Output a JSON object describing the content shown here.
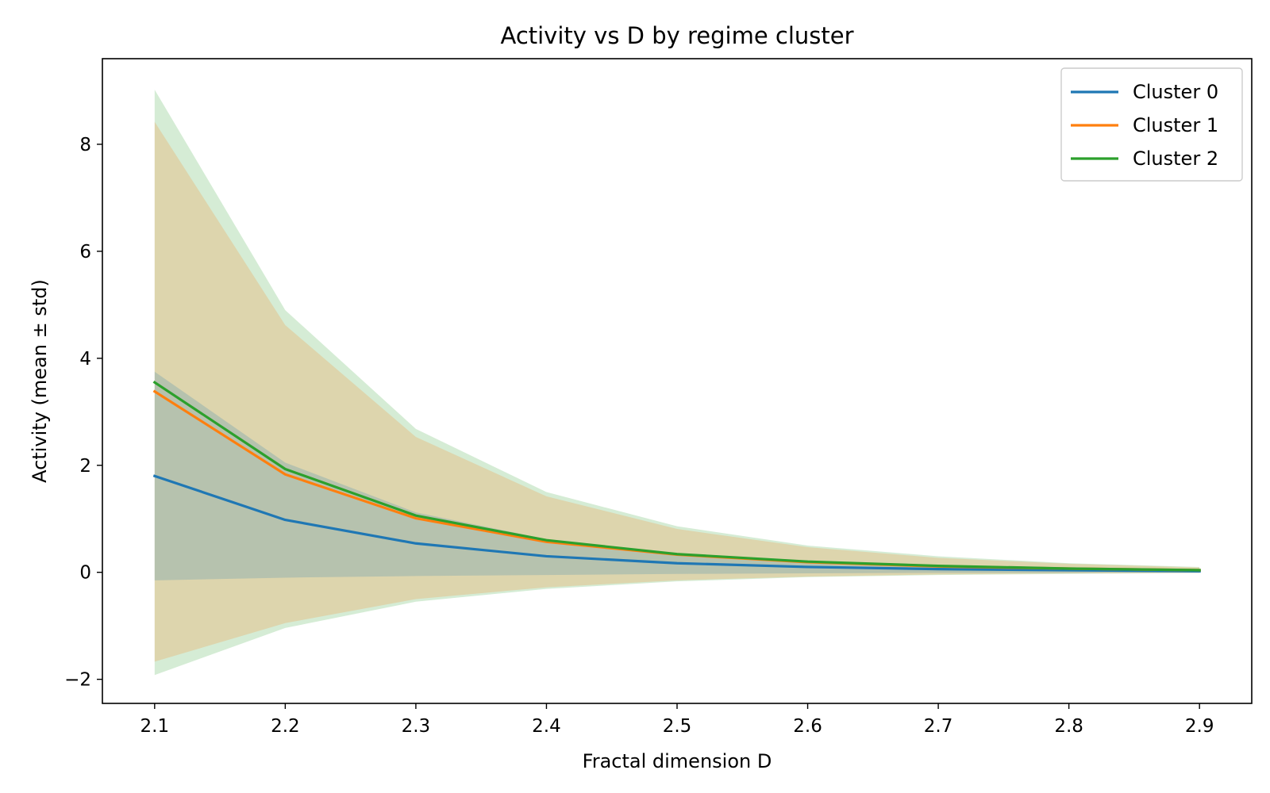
{
  "chart_data": {
    "type": "line",
    "title": "Activity vs D by regime cluster",
    "xlabel": "Fractal dimension D",
    "ylabel": "Activity (mean ± std)",
    "xlim": [
      2.06,
      2.94
    ],
    "ylim": [
      -2.45,
      9.6
    ],
    "x": [
      2.1,
      2.2,
      2.3,
      2.4,
      2.5,
      2.6,
      2.7,
      2.8,
      2.9
    ],
    "xticks": [
      "2.1",
      "2.2",
      "2.3",
      "2.4",
      "2.5",
      "2.6",
      "2.7",
      "2.8",
      "2.9"
    ],
    "yticks": [
      -2,
      0,
      2,
      4,
      6,
      8
    ],
    "yticklabels": [
      "−2",
      "0",
      "2",
      "4",
      "6",
      "8"
    ],
    "legend_position": "top-right",
    "grid": false,
    "series": [
      {
        "name": "Cluster 0",
        "color": "#1f77b4",
        "mean": [
          1.8,
          0.98,
          0.54,
          0.3,
          0.17,
          0.1,
          0.06,
          0.04,
          0.02
        ],
        "lower": [
          -0.15,
          -0.1,
          -0.07,
          -0.05,
          -0.03,
          -0.02,
          -0.01,
          -0.01,
          0.0
        ],
        "upper": [
          3.75,
          2.05,
          1.12,
          0.62,
          0.36,
          0.22,
          0.13,
          0.08,
          0.05
        ]
      },
      {
        "name": "Cluster 1",
        "color": "#ff7f0e",
        "mean": [
          3.38,
          1.83,
          1.01,
          0.57,
          0.33,
          0.19,
          0.11,
          0.07,
          0.04
        ],
        "lower": [
          -1.67,
          -0.95,
          -0.5,
          -0.28,
          -0.15,
          -0.08,
          -0.04,
          -0.02,
          -0.01
        ],
        "upper": [
          8.42,
          4.62,
          2.53,
          1.42,
          0.81,
          0.47,
          0.27,
          0.16,
          0.09
        ]
      },
      {
        "name": "Cluster 2",
        "color": "#2ca02c",
        "mean": [
          3.55,
          1.93,
          1.06,
          0.6,
          0.34,
          0.2,
          0.12,
          0.07,
          0.04
        ],
        "lower": [
          -1.92,
          -1.04,
          -0.55,
          -0.31,
          -0.17,
          -0.09,
          -0.05,
          -0.03,
          -0.01
        ],
        "upper": [
          9.02,
          4.9,
          2.68,
          1.5,
          0.86,
          0.5,
          0.3,
          0.17,
          0.1
        ]
      }
    ]
  }
}
